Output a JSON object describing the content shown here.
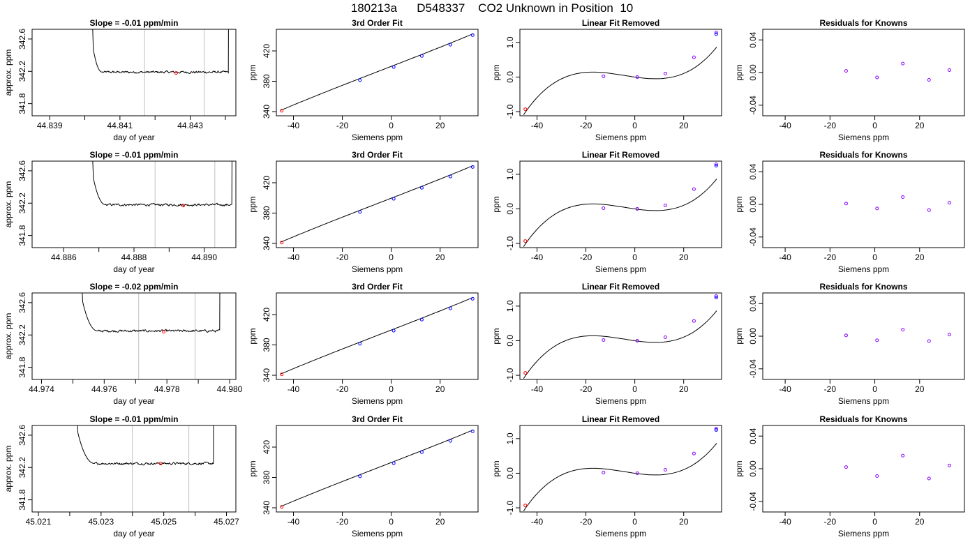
{
  "title": "180213a      D548337    CO2 Unknown in Position  10",
  "colors": {
    "axis": "#000000",
    "line": "#000000",
    "window": "#bfbfbf",
    "point": "#0000ff",
    "residual": "#8a00ff",
    "highlight": "#ff0000"
  },
  "chart_data": [
    {
      "row": 1,
      "type": "line",
      "title": "Slope =  -0.01  ppm/min",
      "xlabel": "day of year",
      "ylabel": "approx. ppm",
      "xlim": [
        44.8385,
        44.8443
      ],
      "ylim": [
        341.65,
        342.72
      ],
      "xticks": [
        "44.839",
        "44.841",
        "44.843"
      ],
      "xtick_values": [
        44.839,
        44.841,
        44.843
      ],
      "minor_xticks": [
        44.84,
        44.842,
        44.844
      ],
      "yticks": [
        "341.8",
        "342.2",
        "342.6"
      ],
      "ytick_values": [
        341.8,
        342.2,
        342.6
      ],
      "trace_start": 44.84015,
      "trace_end": 44.8441,
      "baseline": 342.19,
      "settle_time": 44.8405,
      "window": [
        44.8417,
        44.8434
      ],
      "marker": [
        44.8426,
        342.18
      ]
    },
    {
      "row": 1,
      "type": "scatter",
      "title": "3rd Order Fit",
      "xlabel": "Siemens ppm",
      "ylabel": "ppm",
      "xlim": [
        -47,
        35.5
      ],
      "ylim": [
        334.5,
        448.5
      ],
      "xticks": [
        "-40",
        "-20",
        "0",
        "20"
      ],
      "xtick_values": [
        -40,
        -20,
        0,
        20
      ],
      "yticks": [
        "340",
        "380",
        "420"
      ],
      "ytick_values": [
        340,
        380,
        420
      ],
      "knowns": [
        [
          -12.8,
          381.5
        ],
        [
          1.0,
          398.8
        ],
        [
          12.5,
          413.3
        ],
        [
          24.2,
          428.2
        ],
        [
          33.3,
          440.8
        ]
      ],
      "unknown": [
        -44.8,
        341.2
      ]
    },
    {
      "row": 1,
      "type": "line",
      "title": "Linear Fit Removed",
      "xlabel": "Siemens ppm",
      "ylabel": "ppm",
      "xlim": [
        -47,
        35.5
      ],
      "ylim": [
        -1.12,
        1.38
      ],
      "xticks": [
        "-40",
        "-20",
        "0",
        "20"
      ],
      "xtick_values": [
        -40,
        -20,
        0,
        20
      ],
      "yticks": [
        "-1.0",
        "0.0",
        "1.0"
      ],
      "ytick_values": [
        -1.0,
        0.0,
        1.0
      ],
      "knowns": [
        [
          -12.8,
          0.02
        ],
        [
          1.0,
          0.0
        ],
        [
          12.5,
          0.1
        ],
        [
          24.2,
          0.57
        ],
        [
          33.3,
          1.29
        ]
      ],
      "fitted": [
        1.24
      ],
      "unknown": [
        -44.8,
        -0.93
      ]
    },
    {
      "row": 1,
      "type": "scatter",
      "title": "Residuals for Knowns",
      "xlabel": "Siemens ppm",
      "ylabel": "ppm",
      "xlim": [
        -50,
        40
      ],
      "ylim": [
        -0.053,
        0.053
      ],
      "xticks": [
        "-40",
        "-20",
        "0",
        "20"
      ],
      "xtick_values": [
        -40,
        -20,
        0,
        20
      ],
      "yticks": [
        "-0.04",
        "0.00",
        "0.04"
      ],
      "ytick_values": [
        -0.04,
        0.0,
        0.04
      ],
      "residuals": [
        [
          -12.8,
          0.002
        ],
        [
          1.0,
          -0.006
        ],
        [
          12.5,
          0.011
        ],
        [
          24.2,
          -0.009
        ],
        [
          33.3,
          0.003
        ]
      ]
    },
    {
      "row": 2,
      "type": "line",
      "title": "Slope =  -0.01  ppm/min",
      "xlabel": "day of year",
      "ylabel": "approx. ppm",
      "xlim": [
        44.8851,
        44.8909
      ],
      "ylim": [
        341.65,
        342.72
      ],
      "xticks": [
        "44.886",
        "44.888",
        "44.890"
      ],
      "xtick_values": [
        44.886,
        44.888,
        44.89
      ],
      "minor_xticks": [
        44.887,
        44.889
      ],
      "yticks": [
        "341.8",
        "342.2",
        "342.6"
      ],
      "ytick_values": [
        341.8,
        342.2,
        342.6
      ],
      "trace_start": 44.88675,
      "trace_end": 44.8908,
      "baseline": 342.18,
      "settle_time": 44.8872,
      "window": [
        44.8886,
        44.8903
      ],
      "marker": [
        44.8894,
        342.17
      ]
    },
    {
      "row": 2,
      "type": "scatter",
      "title": "3rd Order Fit",
      "xlabel": "Siemens ppm",
      "ylabel": "ppm",
      "xlim": [
        -47,
        35.5
      ],
      "ylim": [
        334.5,
        448.5
      ],
      "xticks": [
        "-40",
        "-20",
        "0",
        "20"
      ],
      "xtick_values": [
        -40,
        -20,
        0,
        20
      ],
      "yticks": [
        "340",
        "380",
        "420"
      ],
      "ytick_values": [
        340,
        380,
        420
      ],
      "knowns": [
        [
          -12.8,
          381.5
        ],
        [
          1.0,
          398.8
        ],
        [
          12.5,
          413.3
        ],
        [
          24.2,
          428.2
        ],
        [
          33.3,
          440.8
        ]
      ],
      "unknown": [
        -44.8,
        341.2
      ]
    },
    {
      "row": 2,
      "type": "line",
      "title": "Linear Fit Removed",
      "xlabel": "Siemens ppm",
      "ylabel": "ppm",
      "xlim": [
        -47,
        35.5
      ],
      "ylim": [
        -1.12,
        1.38
      ],
      "xticks": [
        "-40",
        "-20",
        "0",
        "20"
      ],
      "xtick_values": [
        -40,
        -20,
        0,
        20
      ],
      "yticks": [
        "-1.0",
        "0.0",
        "1.0"
      ],
      "ytick_values": [
        -1.0,
        0.0,
        1.0
      ],
      "knowns": [
        [
          -12.8,
          0.02
        ],
        [
          1.0,
          0.0
        ],
        [
          12.5,
          0.1
        ],
        [
          24.2,
          0.57
        ],
        [
          33.3,
          1.29
        ]
      ],
      "fitted": [
        1.25
      ],
      "unknown": [
        -44.8,
        -0.93
      ]
    },
    {
      "row": 2,
      "type": "scatter",
      "title": "Residuals for Knowns",
      "xlabel": "Siemens ppm",
      "ylabel": "ppm",
      "xlim": [
        -50,
        40
      ],
      "ylim": [
        -0.053,
        0.053
      ],
      "xticks": [
        "-40",
        "-20",
        "0",
        "20"
      ],
      "xtick_values": [
        -40,
        -20,
        0,
        20
      ],
      "yticks": [
        "-0.04",
        "0.00",
        "0.04"
      ],
      "ytick_values": [
        -0.04,
        0.0,
        0.04
      ],
      "residuals": [
        [
          -12.8,
          0.001
        ],
        [
          1.0,
          -0.005
        ],
        [
          12.5,
          0.009
        ],
        [
          24.2,
          -0.007
        ],
        [
          33.3,
          0.002
        ]
      ]
    },
    {
      "row": 3,
      "type": "line",
      "title": "Slope =  -0.02  ppm/min",
      "xlabel": "day of year",
      "ylabel": "approx. ppm",
      "xlim": [
        44.9737,
        44.9802
      ],
      "ylim": [
        341.65,
        342.72
      ],
      "xticks": [
        "44.974",
        "44.976",
        "44.978",
        "44.980"
      ],
      "xtick_values": [
        44.974,
        44.976,
        44.978,
        44.98
      ],
      "minor_xticks": [
        44.975,
        44.977,
        44.979
      ],
      "yticks": [
        "341.8",
        "342.2",
        "342.6"
      ],
      "ytick_values": [
        341.8,
        342.2,
        342.6
      ],
      "trace_start": 44.97521,
      "trace_end": 44.9797,
      "baseline": 342.25,
      "settle_time": 44.9758,
      "window": [
        44.9771,
        44.9789
      ],
      "marker": [
        44.9779,
        342.24
      ]
    },
    {
      "row": 3,
      "type": "scatter",
      "title": "3rd Order Fit",
      "xlabel": "Siemens ppm",
      "ylabel": "ppm",
      "xlim": [
        -47,
        35.5
      ],
      "ylim": [
        334.5,
        448.5
      ],
      "xticks": [
        "-40",
        "-20",
        "0",
        "20"
      ],
      "xtick_values": [
        -40,
        -20,
        0,
        20
      ],
      "yticks": [
        "340",
        "380",
        "420"
      ],
      "ytick_values": [
        340,
        380,
        420
      ],
      "knowns": [
        [
          -12.8,
          381.5
        ],
        [
          1.0,
          398.8
        ],
        [
          12.5,
          413.3
        ],
        [
          24.2,
          428.2
        ],
        [
          33.3,
          440.8
        ]
      ],
      "unknown": [
        -44.8,
        341.2
      ]
    },
    {
      "row": 3,
      "type": "line",
      "title": "Linear Fit Removed",
      "xlabel": "Siemens ppm",
      "ylabel": "ppm",
      "xlim": [
        -47,
        35.5
      ],
      "ylim": [
        -1.12,
        1.38
      ],
      "xticks": [
        "-40",
        "-20",
        "0",
        "20"
      ],
      "xtick_values": [
        -40,
        -20,
        0,
        20
      ],
      "yticks": [
        "-1.0",
        "0.0",
        "1.0"
      ],
      "ytick_values": [
        -1.0,
        0.0,
        1.0
      ],
      "knowns": [
        [
          -12.8,
          0.02
        ],
        [
          1.0,
          0.0
        ],
        [
          12.5,
          0.1
        ],
        [
          24.2,
          0.57
        ],
        [
          33.3,
          1.29
        ]
      ],
      "fitted": [
        1.25
      ],
      "unknown": [
        -44.8,
        -0.93
      ]
    },
    {
      "row": 3,
      "type": "scatter",
      "title": "Residuals for Knowns",
      "xlabel": "Siemens ppm",
      "ylabel": "ppm",
      "xlim": [
        -50,
        40
      ],
      "ylim": [
        -0.053,
        0.053
      ],
      "xticks": [
        "-40",
        "-20",
        "0",
        "20"
      ],
      "xtick_values": [
        -40,
        -20,
        0,
        20
      ],
      "yticks": [
        "-0.04",
        "0.00",
        "0.04"
      ],
      "ytick_values": [
        -0.04,
        0.0,
        0.04
      ],
      "residuals": [
        [
          -12.8,
          0.001
        ],
        [
          1.0,
          -0.005
        ],
        [
          12.5,
          0.008
        ],
        [
          24.2,
          -0.006
        ],
        [
          33.3,
          0.002
        ]
      ]
    },
    {
      "row": 4,
      "type": "line",
      "title": "Slope =  -0.01  ppm/min",
      "xlabel": "day of year",
      "ylabel": "approx. ppm",
      "xlim": [
        45.0208,
        45.0273
      ],
      "ylim": [
        341.65,
        342.72
      ],
      "xticks": [
        "45.021",
        "45.023",
        "45.025",
        "45.027"
      ],
      "xtick_values": [
        45.021,
        45.023,
        45.025,
        45.027
      ],
      "minor_xticks": [
        45.022,
        45.024,
        45.026
      ],
      "yticks": [
        "341.8",
        "342.2",
        "342.6"
      ],
      "ytick_values": [
        341.8,
        342.2,
        342.6
      ],
      "trace_start": 45.02216,
      "trace_end": 45.0266,
      "baseline": 342.25,
      "settle_time": 45.0228,
      "window": [
        45.024,
        45.0258
      ],
      "marker": [
        45.0249,
        342.25
      ]
    },
    {
      "row": 4,
      "type": "scatter",
      "title": "3rd Order Fit",
      "xlabel": "Siemens ppm",
      "ylabel": "ppm",
      "xlim": [
        -47,
        35.5
      ],
      "ylim": [
        334.5,
        448.5
      ],
      "xticks": [
        "-40",
        "-20",
        "0",
        "20"
      ],
      "xtick_values": [
        -40,
        -20,
        0,
        20
      ],
      "yticks": [
        "340",
        "380",
        "420"
      ],
      "ytick_values": [
        340,
        380,
        420
      ],
      "knowns": [
        [
          -12.8,
          381.5
        ],
        [
          1.0,
          398.8
        ],
        [
          12.5,
          413.3
        ],
        [
          24.2,
          428.2
        ],
        [
          33.3,
          440.8
        ]
      ],
      "unknown": [
        -44.8,
        341.2
      ]
    },
    {
      "row": 4,
      "type": "line",
      "title": "Linear Fit Removed",
      "xlabel": "Siemens ppm",
      "ylabel": "ppm",
      "xlim": [
        -47,
        35.5
      ],
      "ylim": [
        -1.12,
        1.38
      ],
      "xticks": [
        "-40",
        "-20",
        "0",
        "20"
      ],
      "xtick_values": [
        -40,
        -20,
        0,
        20
      ],
      "yticks": [
        "-1.0",
        "0.0",
        "1.0"
      ],
      "ytick_values": [
        -1.0,
        0.0,
        1.0
      ],
      "knowns": [
        [
          -12.8,
          0.02
        ],
        [
          1.0,
          0.0
        ],
        [
          12.5,
          0.1
        ],
        [
          24.2,
          0.57
        ],
        [
          33.3,
          1.29
        ]
      ],
      "fitted": [
        1.25
      ],
      "unknown": [
        -44.8,
        -0.93
      ]
    },
    {
      "row": 4,
      "type": "scatter",
      "title": "Residuals for Knowns",
      "xlabel": "Siemens ppm",
      "ylabel": "ppm",
      "xlim": [
        -50,
        40
      ],
      "ylim": [
        -0.053,
        0.053
      ],
      "xticks": [
        "-40",
        "-20",
        "0",
        "20"
      ],
      "xtick_values": [
        -40,
        -20,
        0,
        20
      ],
      "yticks": [
        "-0.04",
        "0.00",
        "0.04"
      ],
      "ytick_values": [
        -0.04,
        0.0,
        0.04
      ],
      "residuals": [
        [
          -12.8,
          0.002
        ],
        [
          1.0,
          -0.009
        ],
        [
          12.5,
          0.016
        ],
        [
          24.2,
          -0.012
        ],
        [
          33.3,
          0.004
        ]
      ]
    }
  ]
}
